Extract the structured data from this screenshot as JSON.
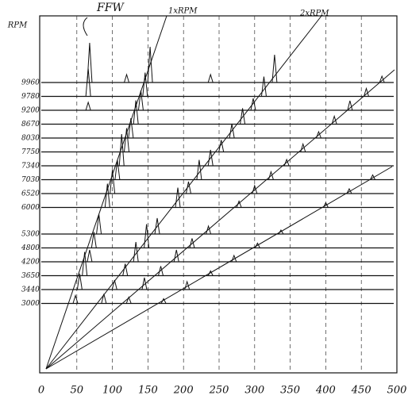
{
  "chart_data": {
    "type": "waterfall",
    "y_label": "RPM",
    "annotations": [
      "FFW",
      "1xRPM",
      "2xRPM"
    ],
    "xlim": [
      0,
      500
    ],
    "xticks": [
      0,
      50,
      100,
      150,
      200,
      250,
      300,
      350,
      400,
      450,
      500
    ],
    "grid": true,
    "color": "#111111",
    "series": [
      {
        "rpm": 9960,
        "x": [
          68,
          120,
          153,
          238,
          328,
          479
        ],
        "values": [
          50,
          10,
          45,
          10,
          35,
          8
        ]
      },
      {
        "rpm": 9780,
        "x": [
          66,
          146,
          313,
          457
        ],
        "values": [
          35,
          30,
          25,
          10
        ]
      },
      {
        "rpm": 9200,
        "x": [
          66,
          140,
          298,
          434
        ],
        "values": [
          10,
          25,
          15,
          12
        ]
      },
      {
        "rpm": 8670,
        "x": [
          133,
          283,
          412
        ],
        "values": [
          30,
          20,
          10
        ]
      },
      {
        "rpm": 8030,
        "x": [
          126,
          268,
          390
        ],
        "values": [
          25,
          18,
          8
        ]
      },
      {
        "rpm": 7750,
        "x": [
          120,
          253,
          368
        ],
        "values": [
          30,
          15,
          10
        ]
      },
      {
        "rpm": 7340,
        "x": [
          113,
          238,
          345
        ],
        "values": [
          40,
          20,
          8
        ]
      },
      {
        "rpm": 7030,
        "x": [
          107,
          222,
          323,
          466
        ],
        "values": [
          25,
          25,
          10,
          6
        ]
      },
      {
        "rpm": 6520,
        "x": [
          100,
          207,
          300,
          433
        ],
        "values": [
          30,
          15,
          10,
          6
        ]
      },
      {
        "rpm": 6000,
        "x": [
          93,
          192,
          278,
          400
        ],
        "values": [
          30,
          25,
          8,
          6
        ]
      },
      {
        "rpm": 5300,
        "x": [
          81,
          163,
          235,
          337
        ],
        "values": [
          25,
          20,
          10,
          5
        ]
      },
      {
        "rpm": 4800,
        "x": [
          74,
          148,
          212,
          304
        ],
        "values": [
          20,
          30,
          12,
          6
        ]
      },
      {
        "rpm": 4200,
        "x": [
          68,
          133,
          190,
          271
        ],
        "values": [
          15,
          25,
          15,
          8
        ]
      },
      {
        "rpm": 3650,
        "x": [
          61,
          118,
          168,
          238
        ],
        "values": [
          30,
          15,
          12,
          6
        ]
      },
      {
        "rpm": 3440,
        "x": [
          54,
          103,
          145,
          205
        ],
        "values": [
          20,
          12,
          15,
          10
        ]
      },
      {
        "rpm": 3000,
        "x": [
          48,
          88,
          123,
          172
        ],
        "values": [
          10,
          12,
          8,
          6
        ]
      }
    ]
  }
}
